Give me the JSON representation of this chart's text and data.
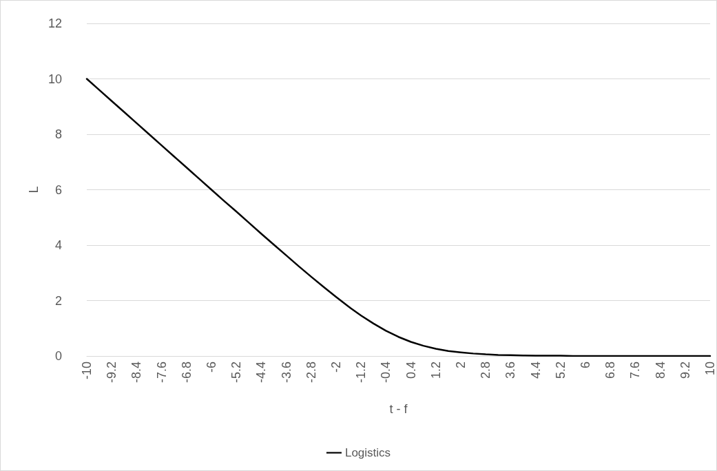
{
  "chart_data": {
    "type": "line",
    "xlabel": "t - f",
    "ylabel": "L",
    "categories": [
      "-10",
      null,
      "-9.2",
      null,
      "-8.4",
      null,
      "-7.6",
      null,
      "-6.8",
      null,
      "-6",
      null,
      "-5.2",
      null,
      "-4.4",
      null,
      "-3.6",
      null,
      "-2.8",
      null,
      "-2",
      null,
      "-1.2",
      null,
      "-0.4",
      null,
      "0.4",
      null,
      "1.2",
      null,
      "2",
      null,
      "2.8",
      null,
      "3.6",
      null,
      "4.4",
      null,
      "5.2",
      null,
      "6",
      null,
      "6.8",
      null,
      "7.6",
      null,
      "8.4",
      null,
      "9.2",
      null,
      "10"
    ],
    "series": [
      {
        "name": "Logistics",
        "color": "#000000",
        "values": [
          10.0,
          9.6,
          9.2,
          8.8,
          8.4,
          8.0,
          7.6,
          7.2,
          6.8,
          6.4,
          6.0,
          5.6,
          5.21,
          4.81,
          4.41,
          4.02,
          3.63,
          3.24,
          2.86,
          2.49,
          2.13,
          1.78,
          1.46,
          1.17,
          0.91,
          0.69,
          0.51,
          0.37,
          0.26,
          0.18,
          0.13,
          0.09,
          0.06,
          0.04,
          0.03,
          0.02,
          0.01,
          0.01,
          0.01,
          0.0,
          0.0,
          0.0,
          0.0,
          0.0,
          0.0,
          0.0,
          0.0,
          0.0,
          0.0,
          0.0,
          0.0
        ]
      }
    ],
    "ylim": [
      0,
      12
    ],
    "yticks": [
      0,
      2,
      4,
      6,
      8,
      10,
      12
    ],
    "grid": "y",
    "legend": "bottom",
    "marker": "none",
    "line_style": "solid"
  }
}
